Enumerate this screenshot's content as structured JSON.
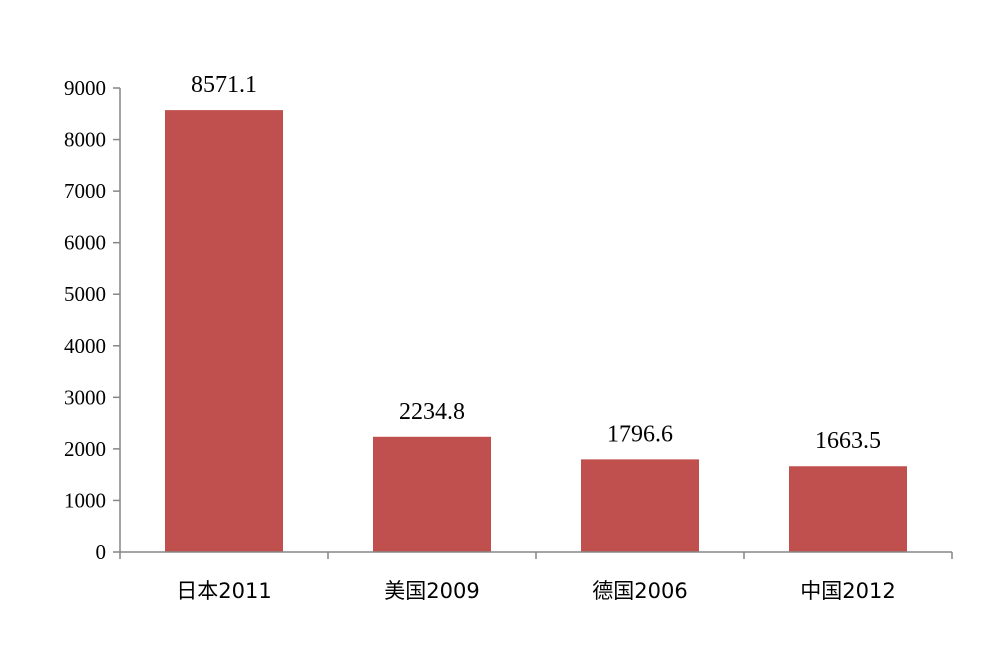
{
  "chart_data": {
    "type": "bar",
    "categories": [
      "日本2011",
      "美国2009",
      "德国2006",
      "中国2012"
    ],
    "values": [
      8571.1,
      2234.8,
      1796.6,
      1663.5
    ],
    "data_labels": [
      "8571.1",
      "2234.8",
      "1796.6",
      "1663.5"
    ],
    "title": "",
    "xlabel": "",
    "ylabel": "",
    "ylim": [
      0,
      9000
    ],
    "yticks": [
      0,
      1000,
      2000,
      3000,
      4000,
      5000,
      6000,
      7000,
      8000,
      9000
    ],
    "grid": false,
    "legend": "none",
    "colors": {
      "bar": "#c0504d",
      "axis": "#868686"
    }
  }
}
